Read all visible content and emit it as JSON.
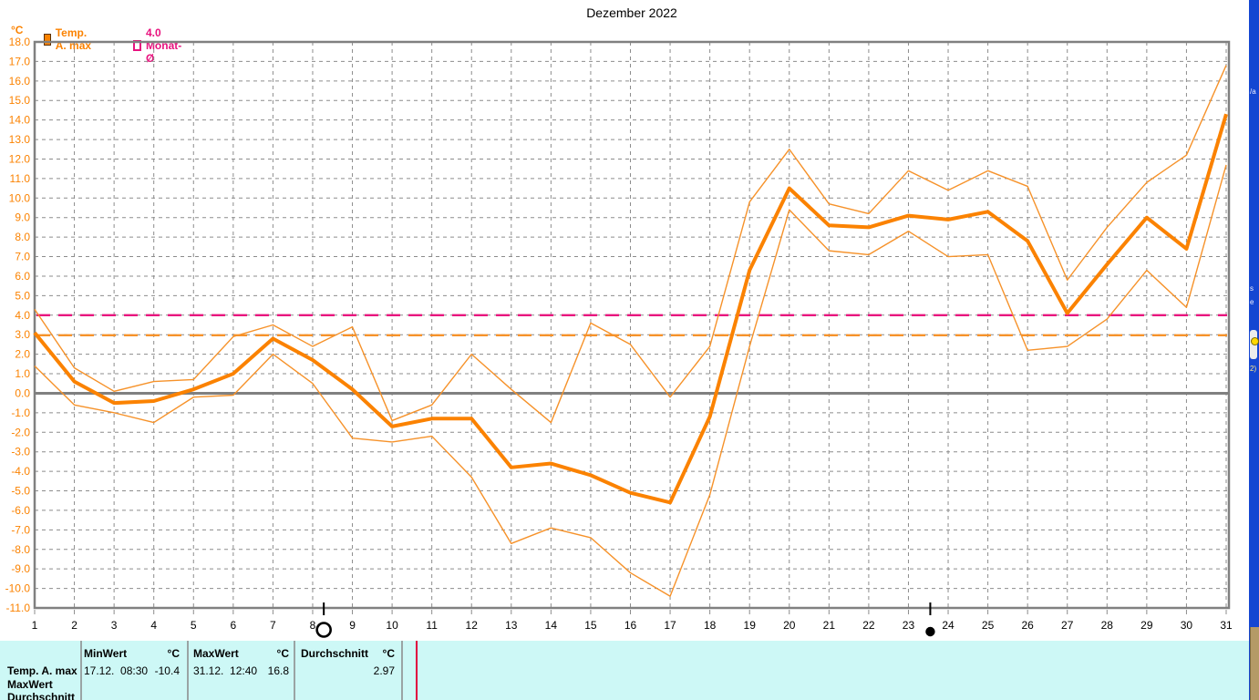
{
  "title": "Dezember 2022",
  "legend": {
    "unit_label": "°C",
    "items": [
      {
        "label": "Temp. A. max",
        "color": "#FB8200",
        "swatch": "filled"
      },
      {
        "label": "4.0 Monat-Ø",
        "color": "#E8127E",
        "swatch": "outline"
      }
    ]
  },
  "colors": {
    "orange": "#FB8200",
    "orange_light": "#F6922A",
    "magenta": "#E8127E",
    "grid": "#8C8C8C",
    "axis": "#808080",
    "table_bg": "#CDF8F6",
    "desktop_blue": "#1446D2"
  },
  "chart_data": {
    "type": "line",
    "title": "Dezember 2022",
    "ylabel": "°C",
    "xlabel": "",
    "ylim": [
      -11,
      18
    ],
    "ytick_step": 1.0,
    "grid": true,
    "legend_position": "top-left",
    "x": [
      1,
      2,
      3,
      4,
      5,
      6,
      7,
      8,
      9,
      10,
      11,
      12,
      13,
      14,
      15,
      16,
      17,
      18,
      19,
      20,
      21,
      22,
      23,
      24,
      25,
      26,
      27,
      28,
      29,
      30,
      31
    ],
    "series": [
      {
        "name": "Temp. A. max Tagesminimum",
        "style": "thin",
        "color": "#F6922A",
        "values": [
          1.4,
          -0.6,
          -1.0,
          -1.5,
          -0.2,
          -0.1,
          2.0,
          0.5,
          -2.3,
          -2.5,
          -2.2,
          -4.3,
          -7.7,
          -6.9,
          -7.4,
          -9.2,
          -10.4,
          -5.2,
          2.4,
          9.4,
          7.3,
          7.1,
          8.3,
          7.0,
          7.1,
          2.2,
          2.4,
          3.8,
          6.3,
          4.4,
          11.7
        ]
      },
      {
        "name": "Temp. A. max Tagesmaximum",
        "style": "thin",
        "color": "#F6922A",
        "values": [
          4.3,
          1.3,
          0.1,
          0.6,
          0.7,
          2.9,
          3.5,
          2.4,
          3.4,
          -1.4,
          -0.6,
          2.0,
          0.2,
          -1.5,
          3.6,
          2.5,
          -0.2,
          2.4,
          9.8,
          12.5,
          9.7,
          9.2,
          11.4,
          10.4,
          11.4,
          10.6,
          5.8,
          8.5,
          10.8,
          12.2,
          16.8
        ]
      },
      {
        "name": "Temp. A. max Tagesmittel",
        "style": "thick",
        "color": "#FB8200",
        "values": [
          3.1,
          0.6,
          -0.5,
          -0.4,
          0.2,
          1.0,
          2.8,
          1.7,
          0.2,
          -1.7,
          -1.3,
          -1.3,
          -3.8,
          -3.6,
          -4.2,
          -5.1,
          -5.6,
          -1.2,
          6.3,
          10.5,
          8.6,
          8.5,
          9.1,
          8.9,
          9.3,
          7.8,
          4.1,
          6.6,
          9.0,
          7.4,
          14.3
        ]
      }
    ],
    "reference_lines": [
      {
        "label": "4.0 Monat-Ø",
        "value": 4.0,
        "color": "#E8127E",
        "style": "dashed"
      },
      {
        "label": "Durchschnitt 2.97",
        "value": 2.97,
        "color": "#F6922A",
        "style": "dashed"
      }
    ],
    "moon_markers": [
      {
        "day": 8.28,
        "phase": "full",
        "symbol": "○"
      },
      {
        "day": 23.55,
        "phase": "new",
        "symbol": "●"
      }
    ]
  },
  "summary_table": {
    "row_label_1": "Temp. A. max",
    "row_label_2": "MaxWert",
    "row_label_3": "Durchschnitt",
    "col_min": {
      "header": "MinWert",
      "unit": "°C",
      "datetime": "17.12.  08:30",
      "value": "-10.4"
    },
    "col_max": {
      "header": "MaxWert",
      "unit": "°C",
      "datetime": "31.12.  12:40",
      "value": "16.8"
    },
    "col_avg": {
      "header": "Durchschnitt",
      "unit": "°C",
      "value": "2.97"
    }
  },
  "desktop_strip": {
    "fragments": {
      "f1": "/a",
      "f2": "s",
      "f3": "e",
      "f4": "2)"
    }
  }
}
